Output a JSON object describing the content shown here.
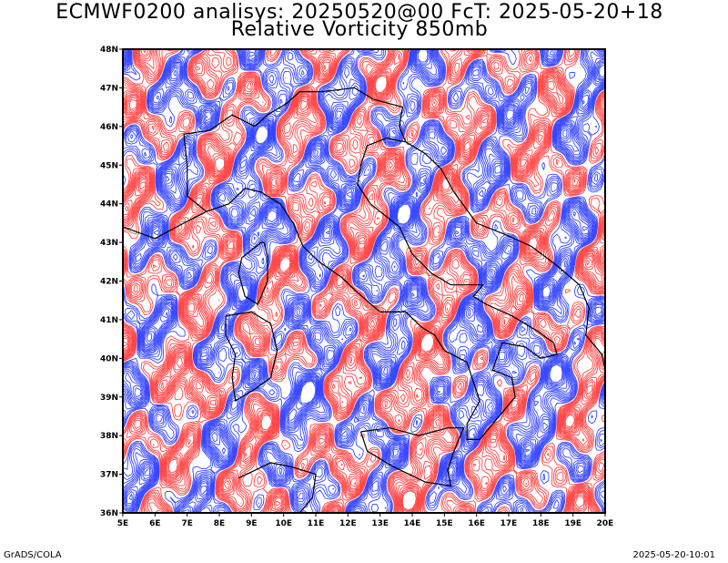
{
  "title_line1": "ECMWF0200 analisys: 20250520@00 FcT: 2025-05-20+18",
  "title_line2": "Relative Vorticity 850mb",
  "footer_left": "GrADS/COLA",
  "footer_right": "2025-05-20-10:01",
  "map": {
    "lon_range": [
      5,
      20
    ],
    "lat_range": [
      36,
      48
    ],
    "lon_ticks": [
      "5E",
      "6E",
      "7E",
      "8E",
      "9E",
      "10E",
      "11E",
      "12E",
      "13E",
      "14E",
      "15E",
      "16E",
      "17E",
      "18E",
      "19E",
      "20E"
    ],
    "lat_ticks": [
      "36N",
      "37N",
      "38N",
      "39N",
      "40N",
      "41N",
      "42N",
      "43N",
      "44N",
      "45N",
      "46N",
      "47N",
      "48N"
    ],
    "colors": {
      "positive": "#ff4444",
      "negative": "#3344ff",
      "coast": "#000000"
    }
  }
}
